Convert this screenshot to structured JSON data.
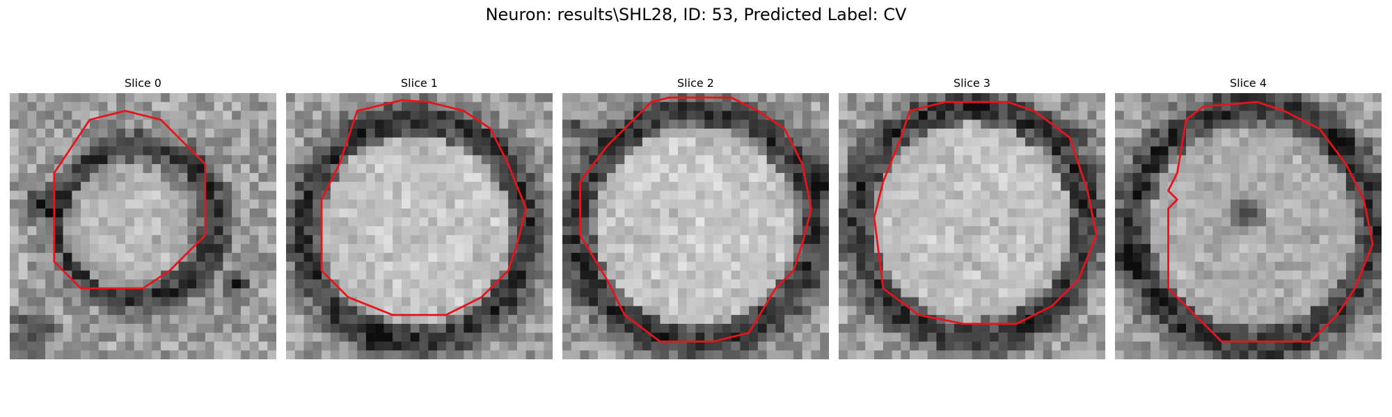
{
  "figure": {
    "title": "Neuron: results\\SHL28, ID: 53, Predicted Label: CV"
  },
  "slices": [
    {
      "title": "Slice 0"
    },
    {
      "title": "Slice 1"
    },
    {
      "title": "Slice 2"
    },
    {
      "title": "Slice 3"
    },
    {
      "title": "Slice 4"
    }
  ],
  "colors": {
    "contour": "#e8141c",
    "background": "#ffffff"
  }
}
